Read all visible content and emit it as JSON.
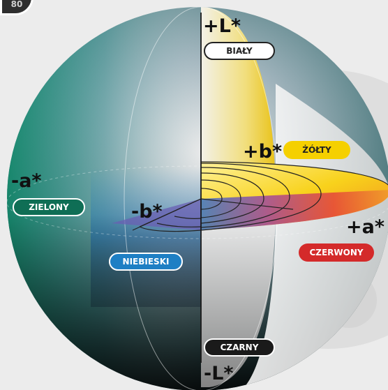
{
  "page_number": "80",
  "axes": {
    "plus_l": "+L*",
    "minus_l": "-L*",
    "plus_a": "+a*",
    "minus_a": "-a*",
    "plus_b": "+b*",
    "minus_b": "-b*"
  },
  "color_labels": {
    "white": "BIAŁY",
    "yellow": "ŻÓŁTY",
    "green": "ZIELONY",
    "blue": "NIEBIESKI",
    "red": "CZERWONY",
    "black": "CZARNY"
  },
  "colors": {
    "white": "#ffffff",
    "yellow": "#f5d000",
    "green": "#0f6e55",
    "blue": "#1e7fc4",
    "red": "#d42a2a",
    "black": "#1a1a1a"
  }
}
